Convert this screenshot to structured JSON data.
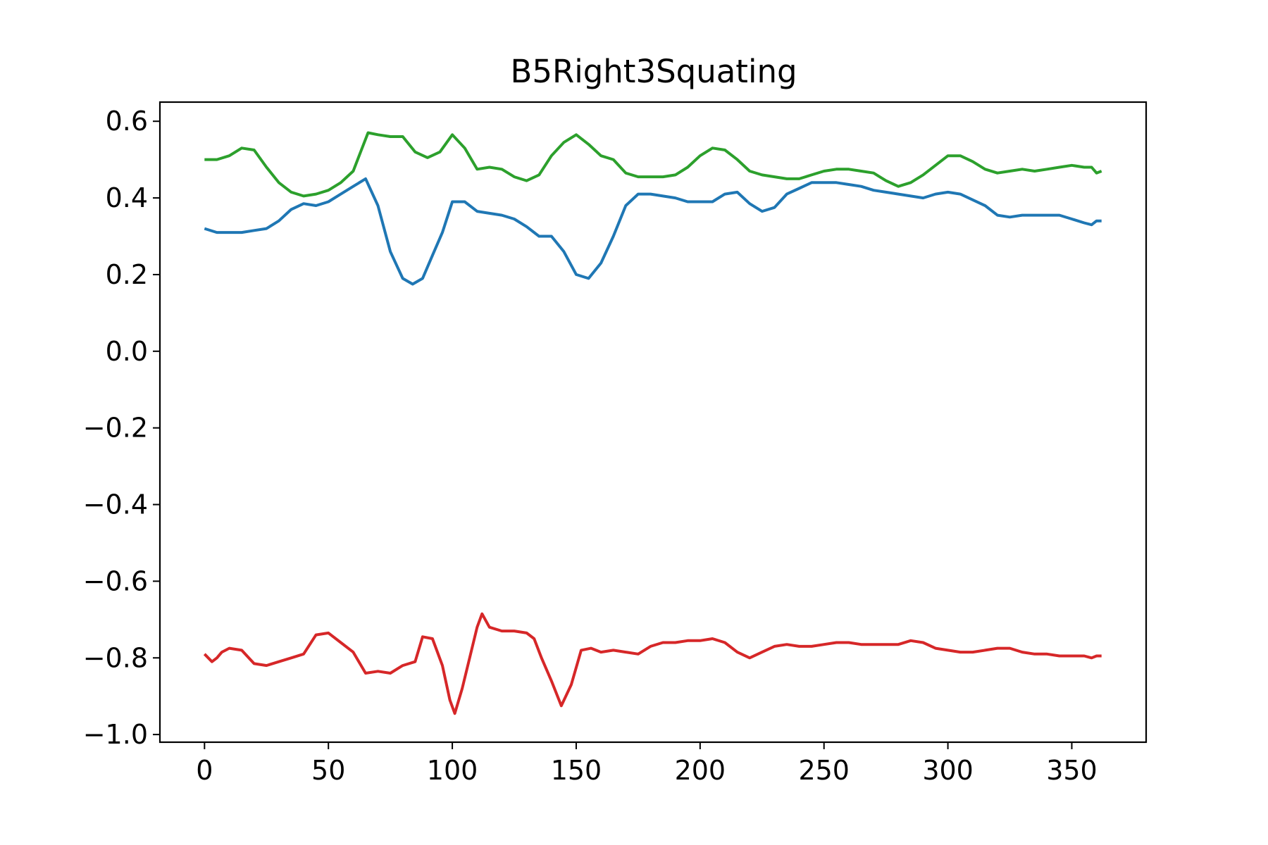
{
  "chart_data": {
    "type": "line",
    "title": "B5Right3Squating",
    "xlabel": "",
    "ylabel": "",
    "xlim": [
      -18,
      380
    ],
    "ylim": [
      -1.02,
      0.65
    ],
    "grid": false,
    "x_ticks": [
      0,
      50,
      100,
      150,
      200,
      250,
      300,
      350
    ],
    "x_tick_labels": [
      "0",
      "50",
      "100",
      "150",
      "200",
      "250",
      "300",
      "350"
    ],
    "y_ticks": [
      0.6,
      0.4,
      0.2,
      0.0,
      -0.2,
      -0.4,
      -0.6,
      -0.8,
      -1.0
    ],
    "y_tick_labels": [
      "0.6",
      "0.4",
      "0.2",
      "0.0",
      "−0.2",
      "−0.4",
      "−0.6",
      "−0.8",
      "−1.0"
    ],
    "series": [
      {
        "color": "#2ca02c",
        "points": [
          [
            0,
            0.5
          ],
          [
            5,
            0.5
          ],
          [
            10,
            0.51
          ],
          [
            15,
            0.53
          ],
          [
            20,
            0.525
          ],
          [
            25,
            0.48
          ],
          [
            30,
            0.44
          ],
          [
            35,
            0.415
          ],
          [
            40,
            0.405
          ],
          [
            45,
            0.41
          ],
          [
            50,
            0.42
          ],
          [
            55,
            0.44
          ],
          [
            60,
            0.47
          ],
          [
            63,
            0.52
          ],
          [
            66,
            0.57
          ],
          [
            70,
            0.565
          ],
          [
            75,
            0.56
          ],
          [
            80,
            0.56
          ],
          [
            85,
            0.52
          ],
          [
            90,
            0.505
          ],
          [
            95,
            0.52
          ],
          [
            100,
            0.565
          ],
          [
            105,
            0.53
          ],
          [
            110,
            0.475
          ],
          [
            115,
            0.48
          ],
          [
            120,
            0.475
          ],
          [
            125,
            0.455
          ],
          [
            130,
            0.445
          ],
          [
            135,
            0.46
          ],
          [
            140,
            0.51
          ],
          [
            145,
            0.545
          ],
          [
            150,
            0.565
          ],
          [
            155,
            0.54
          ],
          [
            160,
            0.51
          ],
          [
            165,
            0.5
          ],
          [
            170,
            0.465
          ],
          [
            175,
            0.455
          ],
          [
            180,
            0.455
          ],
          [
            185,
            0.455
          ],
          [
            190,
            0.46
          ],
          [
            195,
            0.48
          ],
          [
            200,
            0.51
          ],
          [
            205,
            0.53
          ],
          [
            210,
            0.525
          ],
          [
            215,
            0.5
          ],
          [
            220,
            0.47
          ],
          [
            225,
            0.46
          ],
          [
            230,
            0.455
          ],
          [
            235,
            0.45
          ],
          [
            240,
            0.45
          ],
          [
            245,
            0.46
          ],
          [
            250,
            0.47
          ],
          [
            255,
            0.475
          ],
          [
            260,
            0.475
          ],
          [
            265,
            0.47
          ],
          [
            270,
            0.465
          ],
          [
            275,
            0.445
          ],
          [
            280,
            0.43
          ],
          [
            285,
            0.44
          ],
          [
            290,
            0.46
          ],
          [
            295,
            0.485
          ],
          [
            300,
            0.51
          ],
          [
            305,
            0.51
          ],
          [
            310,
            0.495
          ],
          [
            315,
            0.475
          ],
          [
            320,
            0.465
          ],
          [
            325,
            0.47
          ],
          [
            330,
            0.475
          ],
          [
            335,
            0.47
          ],
          [
            340,
            0.475
          ],
          [
            345,
            0.48
          ],
          [
            350,
            0.485
          ],
          [
            355,
            0.48
          ],
          [
            358,
            0.48
          ],
          [
            360,
            0.465
          ],
          [
            362,
            0.47
          ]
        ]
      },
      {
        "color": "#1f77b4",
        "points": [
          [
            0,
            0.32
          ],
          [
            5,
            0.31
          ],
          [
            10,
            0.31
          ],
          [
            15,
            0.31
          ],
          [
            20,
            0.315
          ],
          [
            25,
            0.32
          ],
          [
            30,
            0.34
          ],
          [
            35,
            0.37
          ],
          [
            40,
            0.385
          ],
          [
            45,
            0.38
          ],
          [
            50,
            0.39
          ],
          [
            55,
            0.41
          ],
          [
            60,
            0.43
          ],
          [
            65,
            0.45
          ],
          [
            70,
            0.38
          ],
          [
            75,
            0.26
          ],
          [
            80,
            0.19
          ],
          [
            84,
            0.175
          ],
          [
            88,
            0.19
          ],
          [
            92,
            0.25
          ],
          [
            96,
            0.31
          ],
          [
            100,
            0.39
          ],
          [
            105,
            0.39
          ],
          [
            110,
            0.365
          ],
          [
            115,
            0.36
          ],
          [
            120,
            0.355
          ],
          [
            125,
            0.345
          ],
          [
            130,
            0.325
          ],
          [
            135,
            0.3
          ],
          [
            140,
            0.3
          ],
          [
            145,
            0.26
          ],
          [
            150,
            0.2
          ],
          [
            155,
            0.19
          ],
          [
            160,
            0.23
          ],
          [
            165,
            0.3
          ],
          [
            170,
            0.38
          ],
          [
            175,
            0.41
          ],
          [
            180,
            0.41
          ],
          [
            185,
            0.405
          ],
          [
            190,
            0.4
          ],
          [
            195,
            0.39
          ],
          [
            200,
            0.39
          ],
          [
            205,
            0.39
          ],
          [
            210,
            0.41
          ],
          [
            215,
            0.415
          ],
          [
            220,
            0.385
          ],
          [
            225,
            0.365
          ],
          [
            230,
            0.375
          ],
          [
            235,
            0.41
          ],
          [
            240,
            0.425
          ],
          [
            245,
            0.44
          ],
          [
            250,
            0.44
          ],
          [
            255,
            0.44
          ],
          [
            260,
            0.435
          ],
          [
            265,
            0.43
          ],
          [
            270,
            0.42
          ],
          [
            275,
            0.415
          ],
          [
            280,
            0.41
          ],
          [
            285,
            0.405
          ],
          [
            290,
            0.4
          ],
          [
            295,
            0.41
          ],
          [
            300,
            0.415
          ],
          [
            305,
            0.41
          ],
          [
            310,
            0.395
          ],
          [
            315,
            0.38
          ],
          [
            320,
            0.355
          ],
          [
            325,
            0.35
          ],
          [
            330,
            0.355
          ],
          [
            335,
            0.355
          ],
          [
            340,
            0.355
          ],
          [
            345,
            0.355
          ],
          [
            350,
            0.345
          ],
          [
            355,
            0.335
          ],
          [
            358,
            0.33
          ],
          [
            360,
            0.34
          ],
          [
            362,
            0.34
          ]
        ]
      },
      {
        "color": "#d62728",
        "points": [
          [
            0,
            -0.79
          ],
          [
            3,
            -0.81
          ],
          [
            5,
            -0.8
          ],
          [
            7,
            -0.785
          ],
          [
            10,
            -0.775
          ],
          [
            15,
            -0.78
          ],
          [
            20,
            -0.815
          ],
          [
            25,
            -0.82
          ],
          [
            30,
            -0.81
          ],
          [
            35,
            -0.8
          ],
          [
            40,
            -0.79
          ],
          [
            45,
            -0.74
          ],
          [
            50,
            -0.735
          ],
          [
            55,
            -0.76
          ],
          [
            60,
            -0.785
          ],
          [
            65,
            -0.84
          ],
          [
            70,
            -0.835
          ],
          [
            75,
            -0.84
          ],
          [
            80,
            -0.82
          ],
          [
            85,
            -0.81
          ],
          [
            88,
            -0.745
          ],
          [
            92,
            -0.75
          ],
          [
            96,
            -0.82
          ],
          [
            99,
            -0.91
          ],
          [
            101,
            -0.945
          ],
          [
            104,
            -0.88
          ],
          [
            107,
            -0.8
          ],
          [
            110,
            -0.72
          ],
          [
            112,
            -0.685
          ],
          [
            115,
            -0.72
          ],
          [
            120,
            -0.73
          ],
          [
            125,
            -0.73
          ],
          [
            130,
            -0.735
          ],
          [
            133,
            -0.75
          ],
          [
            136,
            -0.8
          ],
          [
            140,
            -0.86
          ],
          [
            144,
            -0.925
          ],
          [
            148,
            -0.87
          ],
          [
            152,
            -0.78
          ],
          [
            156,
            -0.775
          ],
          [
            160,
            -0.785
          ],
          [
            165,
            -0.78
          ],
          [
            170,
            -0.785
          ],
          [
            175,
            -0.79
          ],
          [
            180,
            -0.77
          ],
          [
            185,
            -0.76
          ],
          [
            190,
            -0.76
          ],
          [
            195,
            -0.755
          ],
          [
            200,
            -0.755
          ],
          [
            205,
            -0.75
          ],
          [
            210,
            -0.76
          ],
          [
            215,
            -0.785
          ],
          [
            220,
            -0.8
          ],
          [
            225,
            -0.785
          ],
          [
            230,
            -0.77
          ],
          [
            235,
            -0.765
          ],
          [
            240,
            -0.77
          ],
          [
            245,
            -0.77
          ],
          [
            250,
            -0.765
          ],
          [
            255,
            -0.76
          ],
          [
            260,
            -0.76
          ],
          [
            265,
            -0.765
          ],
          [
            270,
            -0.765
          ],
          [
            275,
            -0.765
          ],
          [
            280,
            -0.765
          ],
          [
            285,
            -0.755
          ],
          [
            290,
            -0.76
          ],
          [
            295,
            -0.775
          ],
          [
            300,
            -0.78
          ],
          [
            305,
            -0.785
          ],
          [
            310,
            -0.785
          ],
          [
            315,
            -0.78
          ],
          [
            320,
            -0.775
          ],
          [
            325,
            -0.775
          ],
          [
            330,
            -0.785
          ],
          [
            335,
            -0.79
          ],
          [
            340,
            -0.79
          ],
          [
            345,
            -0.795
          ],
          [
            350,
            -0.795
          ],
          [
            355,
            -0.795
          ],
          [
            358,
            -0.8
          ],
          [
            360,
            -0.795
          ],
          [
            362,
            -0.795
          ]
        ]
      }
    ]
  }
}
